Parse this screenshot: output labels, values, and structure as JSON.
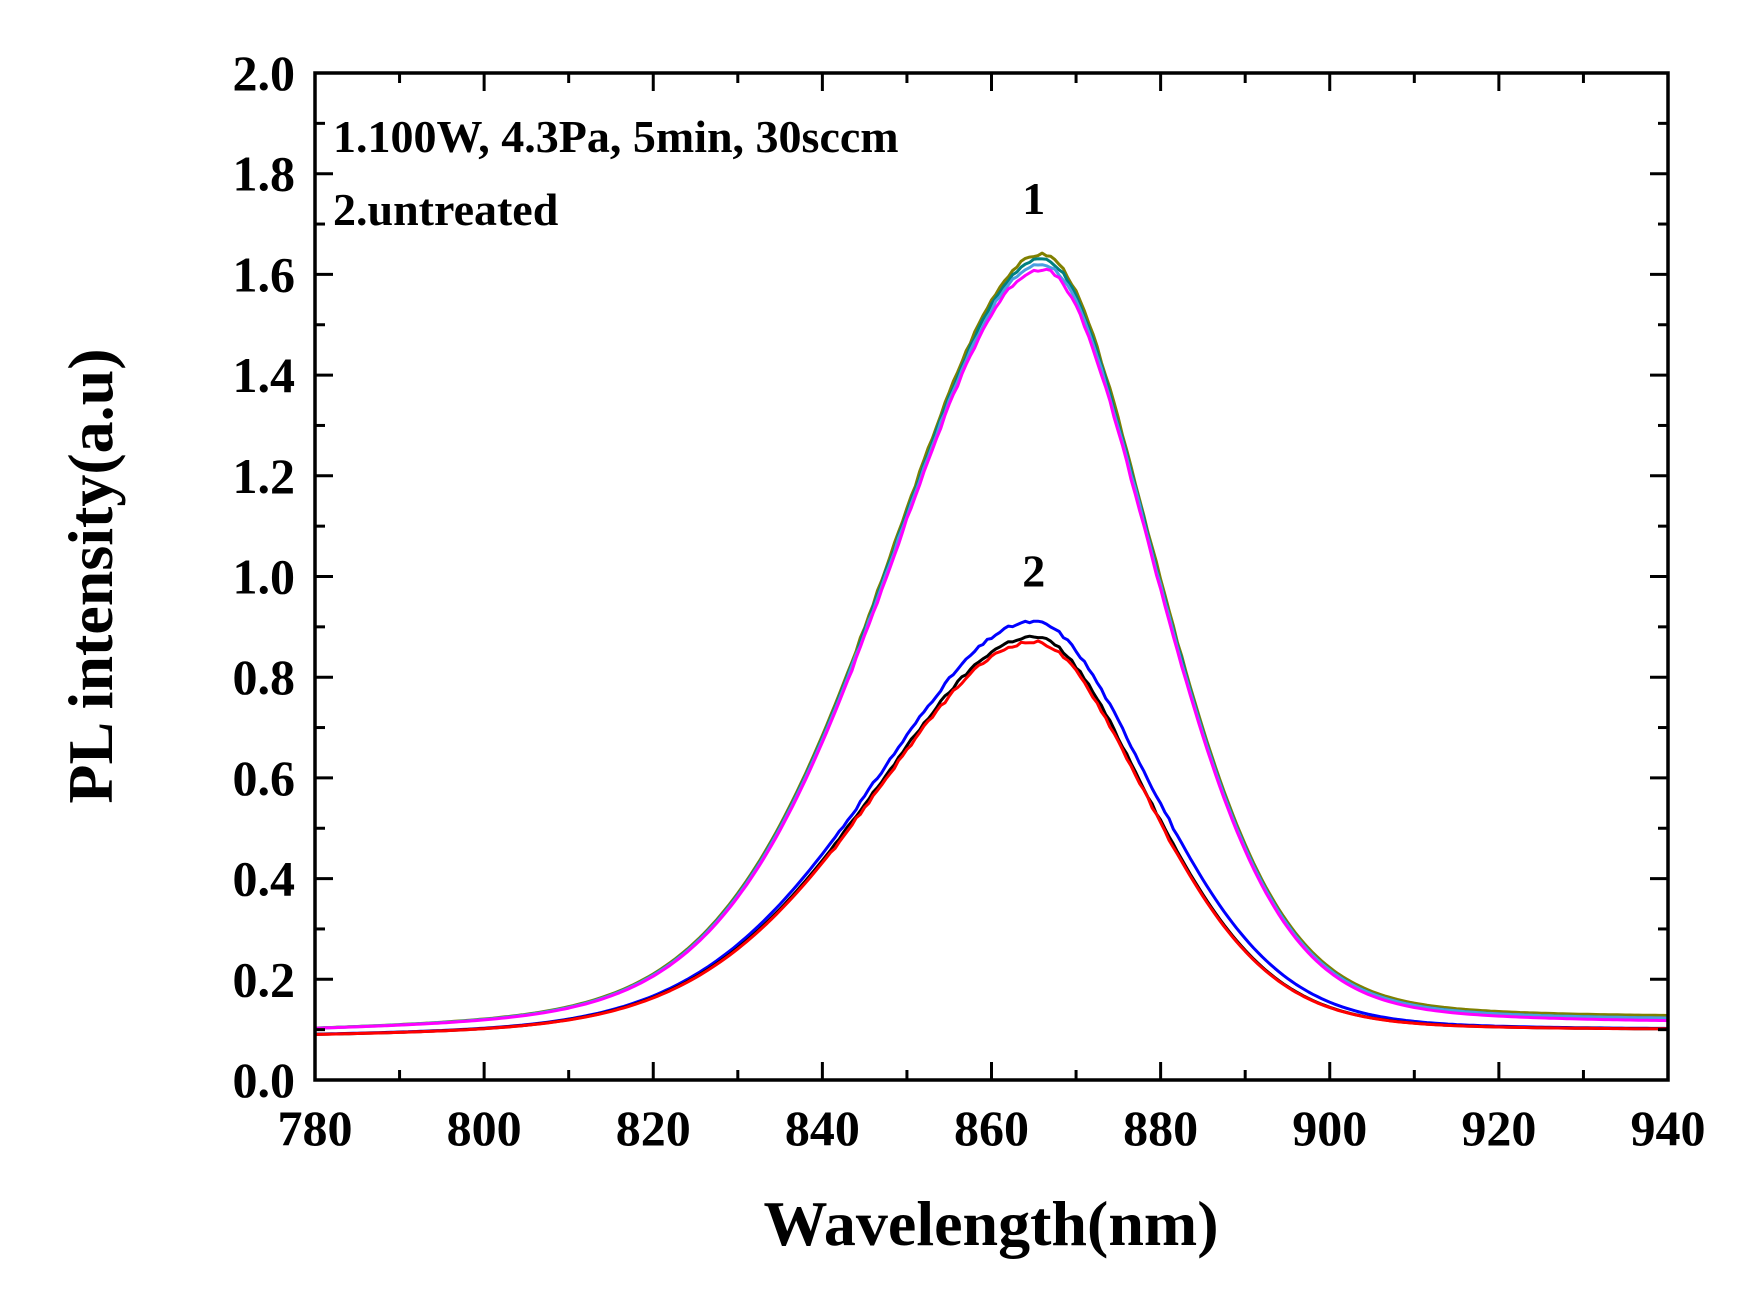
{
  "chart_data": {
    "type": "line",
    "title": "",
    "xlabel": "Wavelength(nm)",
    "ylabel": "PL intensity(a.u)",
    "xlim": [
      780,
      940
    ],
    "ylim": [
      0.0,
      2.0
    ],
    "x_ticks": [
      "780",
      "800",
      "820",
      "840",
      "860",
      "880",
      "900",
      "920",
      "940"
    ],
    "y_ticks": [
      "0.0",
      "0.2",
      "0.4",
      "0.6",
      "0.8",
      "1.0",
      "1.2",
      "1.4",
      "1.6",
      "1.8",
      "2.0"
    ],
    "grid": false,
    "legend": "none",
    "annotations": [
      "1.100W, 4.3Pa, 5min, 30sccm",
      "2.untreated"
    ],
    "curve_labels": [
      {
        "text": "1",
        "x": 865,
        "y": 1.72
      },
      {
        "text": "2",
        "x": 865,
        "y": 0.98
      }
    ],
    "series_model": "gaussian-like peak on baseline; approximate shape",
    "series": [
      {
        "group": "1",
        "color": "#808000",
        "peak_x": 866,
        "peak_y": 1.64,
        "baseline_left": 0.085,
        "baseline_right": 0.115,
        "width_left": 19,
        "width_right": 14
      },
      {
        "group": "1",
        "color": "#008080",
        "peak_x": 866,
        "peak_y": 1.63,
        "baseline_left": 0.085,
        "baseline_right": 0.11,
        "width_left": 19,
        "width_right": 14
      },
      {
        "group": "1",
        "color": "#4aa0e0",
        "peak_x": 866,
        "peak_y": 1.62,
        "baseline_left": 0.085,
        "baseline_right": 0.11,
        "width_left": 19,
        "width_right": 14
      },
      {
        "group": "1",
        "color": "#ff00ff",
        "peak_x": 866,
        "peak_y": 1.61,
        "baseline_left": 0.085,
        "baseline_right": 0.105,
        "width_left": 19,
        "width_right": 14
      },
      {
        "group": "2",
        "color": "#0000ff",
        "peak_x": 865,
        "peak_y": 0.91,
        "baseline_left": 0.08,
        "baseline_right": 0.095,
        "width_left": 20,
        "width_right": 14.5
      },
      {
        "group": "2",
        "color": "#000000",
        "peak_x": 865,
        "peak_y": 0.88,
        "baseline_left": 0.08,
        "baseline_right": 0.095,
        "width_left": 20,
        "width_right": 14
      },
      {
        "group": "2",
        "color": "#ff0000",
        "peak_x": 865,
        "peak_y": 0.87,
        "baseline_left": 0.08,
        "baseline_right": 0.095,
        "width_left": 20,
        "width_right": 14
      }
    ]
  }
}
